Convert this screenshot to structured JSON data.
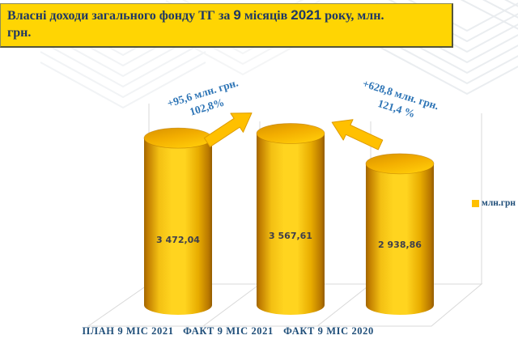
{
  "title": {
    "seg1": "Власні доходи загального фонду ТГ за ",
    "seg2": "9",
    "seg3": " місяців ",
    "seg4": "2021",
    "seg5": " року,  млн.",
    "seg6": "грн."
  },
  "chart_data": {
    "type": "bar",
    "style": "3d-gold-cylinders",
    "title": "Власні доходи загального фонду ТГ за 9 місяців 2021 року, млн. грн.",
    "unit": "млн. грн.",
    "categories": [
      "ПЛАН 9 МІС 2021",
      "ФАКТ 9 МІС 2021",
      "ФАКТ 9 МІС 2020"
    ],
    "values": [
      3472.04,
      3567.61,
      2938.86
    ],
    "value_labels": [
      "3 472,04",
      "3 567,61",
      "2 938,86"
    ],
    "ylim": [
      0,
      3800
    ],
    "grid": "3d-floor-and-back-wall",
    "legend": {
      "position": "right",
      "entries": [
        {
          "label": "млн.грн",
          "color": "#FFC000"
        }
      ]
    },
    "annotations": [
      {
        "line1": "+95,6 млн. грн.",
        "line2": "102,8%",
        "arrow_direction": "up-right",
        "between": [
          "ПЛАН 9 МІС 2021",
          "ФАКТ 9 МІС 2021"
        ]
      },
      {
        "line1": "+628,8 млн. грн.",
        "line2": "121,4 %",
        "arrow_direction": "up-left",
        "between": [
          "ФАКТ 9 МІС 2021",
          "ФАКТ 9 МІС 2020"
        ]
      }
    ]
  },
  "colors": {
    "title_bg": "#FFD503",
    "title_text": "#1F3864",
    "bar_bright": "#FFD41F",
    "bar_dark_edge": "#A06600",
    "arrow_gold": "#FFC000",
    "annotation_text": "#2E75B6",
    "category_text": "#1F4E79",
    "value_text": "#3E3E4C",
    "grid_line": "#D9D9D9"
  }
}
